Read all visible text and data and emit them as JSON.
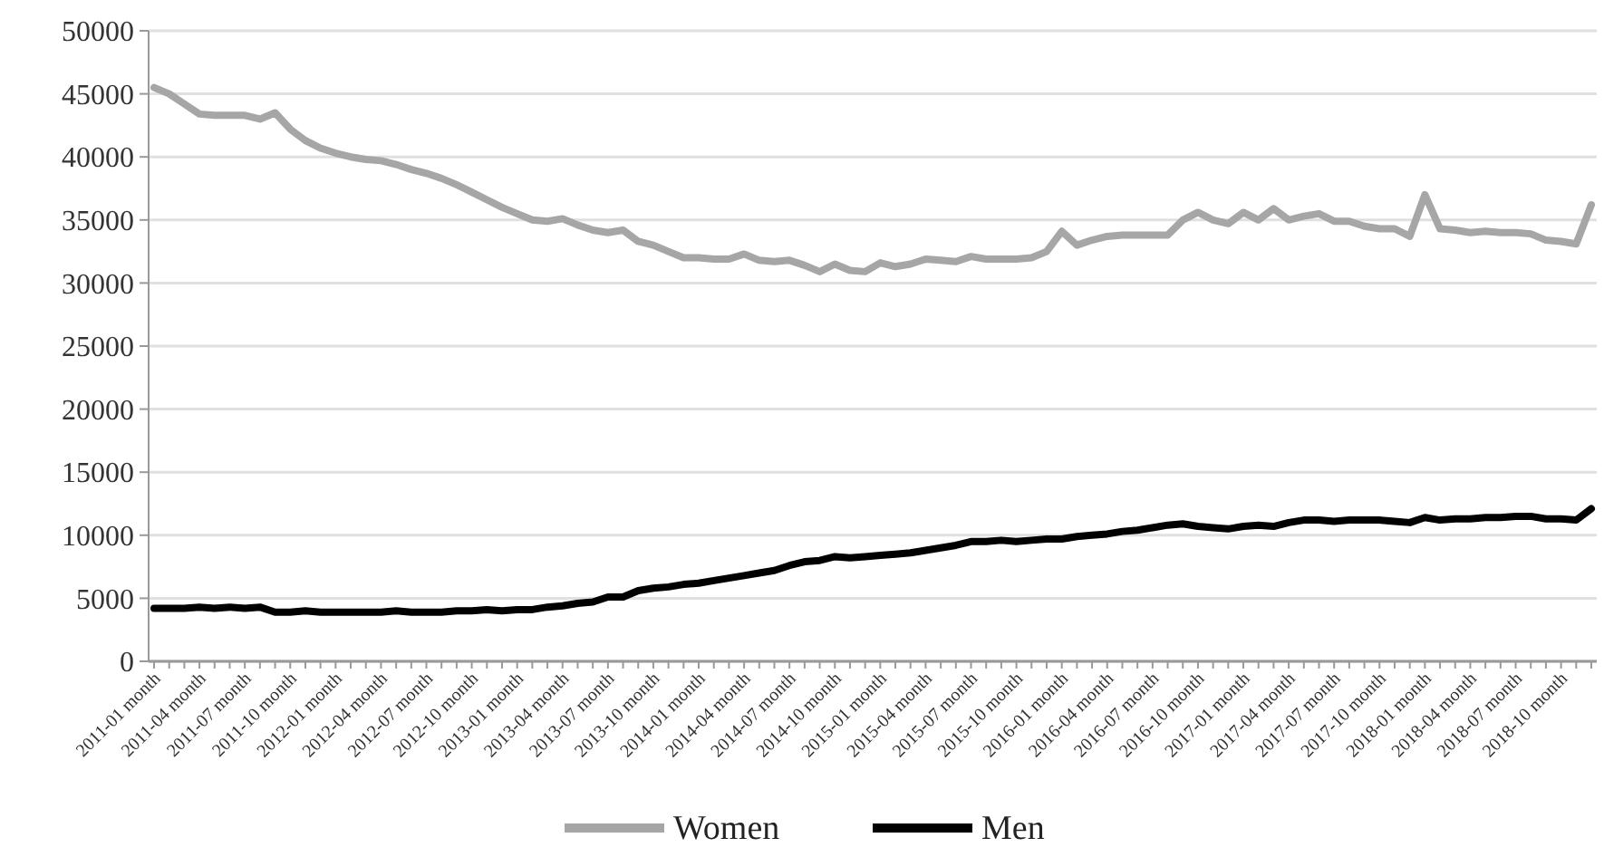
{
  "chart_data": {
    "type": "line",
    "categories": [
      "2011-01 month",
      null,
      null,
      "2011-04 month",
      null,
      null,
      "2011-07 month",
      null,
      null,
      "2011-10 month",
      null,
      null,
      "2012-01 month",
      null,
      null,
      "2012-04 month",
      null,
      null,
      "2012-07 month",
      null,
      null,
      "2012-10 month",
      null,
      null,
      "2013-01 month",
      null,
      null,
      "2013-04 month",
      null,
      null,
      "2013-07 month",
      null,
      null,
      "2013-10 month",
      null,
      null,
      "2014-01 month",
      null,
      null,
      "2014-04 month",
      null,
      null,
      "2014-07 month",
      null,
      null,
      "2014-10 month",
      null,
      null,
      "2015-01 month",
      null,
      null,
      "2015-04 month",
      null,
      null,
      "2015-07 month",
      null,
      null,
      "2015-10 month",
      null,
      null,
      "2016-01 month",
      null,
      null,
      "2016-04 month",
      null,
      null,
      "2016-07 month",
      null,
      null,
      "2016-10 month",
      null,
      null,
      "2017-01 month",
      null,
      null,
      "2017-04 month",
      null,
      null,
      "2017-07 month",
      null,
      null,
      "2017-10 month",
      null,
      null,
      "2018-01 month",
      null,
      null,
      "2018-04 month",
      null,
      null,
      "2018-07 month",
      null,
      null,
      "2018-10 month",
      null,
      null
    ],
    "series": [
      {
        "name": "Women",
        "color": "#a6a6a6",
        "values": [
          45500,
          45000,
          44200,
          43400,
          43300,
          43300,
          43300,
          43000,
          43500,
          42200,
          41300,
          40700,
          40300,
          40000,
          39800,
          39700,
          39400,
          39000,
          38700,
          38300,
          37800,
          37200,
          36600,
          36000,
          35500,
          35000,
          34900,
          35100,
          34600,
          34200,
          34000,
          34200,
          33300,
          33000,
          32500,
          32000,
          32000,
          31900,
          31900,
          32300,
          31800,
          31700,
          31800,
          31400,
          30900,
          31500,
          31000,
          30900,
          31600,
          31300,
          31500,
          31900,
          31800,
          31700,
          32100,
          31900,
          31900,
          31900,
          32000,
          32500,
          34100,
          33000,
          33400,
          33700,
          33800,
          33800,
          33800,
          33800,
          35000,
          35600,
          35000,
          34700,
          35600,
          35000,
          35900,
          35000,
          35300,
          35500,
          34900,
          34900,
          34500,
          34300,
          34300,
          33700,
          37000,
          34300,
          34200,
          34000,
          34100,
          34000,
          34000,
          33900,
          33400,
          33300,
          33100,
          36200
        ]
      },
      {
        "name": "Men",
        "color": "#000000",
        "values": [
          4200,
          4200,
          4200,
          4300,
          4200,
          4300,
          4200,
          4300,
          3900,
          3900,
          4000,
          3900,
          3900,
          3900,
          3900,
          3900,
          4000,
          3900,
          3900,
          3900,
          4000,
          4000,
          4100,
          4000,
          4100,
          4100,
          4300,
          4400,
          4600,
          4700,
          5100,
          5100,
          5600,
          5800,
          5900,
          6100,
          6200,
          6400,
          6600,
          6800,
          7000,
          7200,
          7600,
          7900,
          8000,
          8300,
          8200,
          8300,
          8400,
          8500,
          8600,
          8800,
          9000,
          9200,
          9500,
          9500,
          9600,
          9500,
          9600,
          9700,
          9700,
          9900,
          10000,
          10100,
          10300,
          10400,
          10600,
          10800,
          10900,
          10700,
          10600,
          10500,
          10700,
          10800,
          10700,
          11000,
          11200,
          11200,
          11100,
          11200,
          11200,
          11200,
          11100,
          11000,
          11400,
          11200,
          11300,
          11300,
          11400,
          11400,
          11500,
          11500,
          11300,
          11300,
          11200,
          12100
        ]
      }
    ],
    "ylim": [
      0,
      50000
    ],
    "yticks": [
      0,
      5000,
      10000,
      15000,
      20000,
      25000,
      30000,
      35000,
      40000,
      45000,
      50000
    ],
    "grid": "y",
    "legend": "bottom",
    "line_style": "solid"
  }
}
